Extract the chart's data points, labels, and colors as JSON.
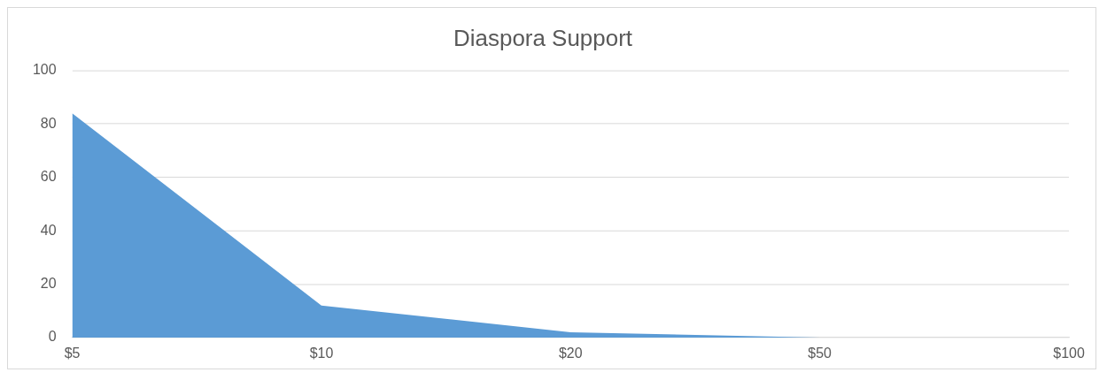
{
  "chart_data": {
    "type": "area",
    "title": "Diaspora Support",
    "categories": [
      "$5",
      "$10",
      "$20",
      "$50",
      "$100"
    ],
    "values": [
      84,
      12,
      2,
      0,
      0
    ],
    "color": "#5b9bd5",
    "ylim": [
      0,
      100
    ],
    "yticks": [
      0,
      20,
      40,
      60,
      80,
      100
    ],
    "grid": "y"
  }
}
